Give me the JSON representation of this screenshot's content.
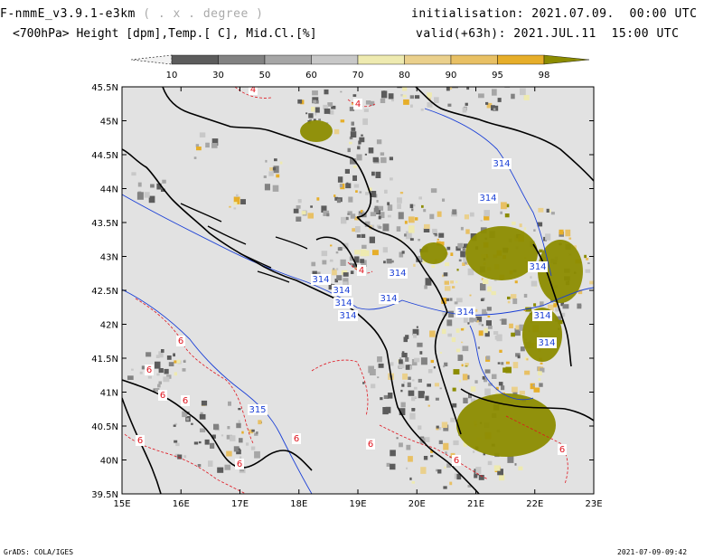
{
  "header": {
    "model": "F-nmmE_v3.9.1-e3km",
    "model_sub": "( . x . degree )",
    "variables": "<700hPa> Height [dpm],Temp.[ C], Mid.Cl.[%]",
    "init_label": "initialisation:",
    "init_value": "2021.07.09.  00:00 UTC",
    "valid_label": "valid(+63h):",
    "valid_value": "2021.JUL.11  15:00 UTC"
  },
  "colorbar": {
    "labels": [
      "10",
      "30",
      "50",
      "60",
      "70",
      "80",
      "90",
      "95",
      "98"
    ],
    "colors": [
      "#f2f2f2",
      "#5c5c5c",
      "#828282",
      "#a6a6a6",
      "#c8c8c8",
      "#eeeab0",
      "#ead08c",
      "#e8c064",
      "#e6ae2a",
      "#8c8c00"
    ]
  },
  "map": {
    "lon_labels": [
      "15E",
      "16E",
      "17E",
      "18E",
      "19E",
      "20E",
      "21E",
      "22E",
      "23E"
    ],
    "lat_labels": [
      "45.5N",
      "45N",
      "44.5N",
      "44N",
      "43.5N",
      "43N",
      "42.5N",
      "42N",
      "41.5N",
      "41N",
      "40.5N",
      "40N",
      "39.5N"
    ],
    "height_labels": [
      "314",
      "314",
      "314",
      "314",
      "314",
      "314",
      "314",
      "314",
      "314",
      "314",
      "314",
      "314",
      "315"
    ],
    "temp_labels": [
      "4",
      "4",
      "4",
      "6",
      "6",
      "6",
      "6",
      "6",
      "6",
      "6",
      "6",
      "6",
      "6"
    ],
    "colors": {
      "land": "#e2e2e2",
      "height_contour": "#1a3fd6",
      "temp_contour": "#e0141e",
      "border": "#000000"
    }
  },
  "footer": {
    "left": "GrADS: COLA/IGES",
    "right": "2021-07-09-09:42"
  }
}
